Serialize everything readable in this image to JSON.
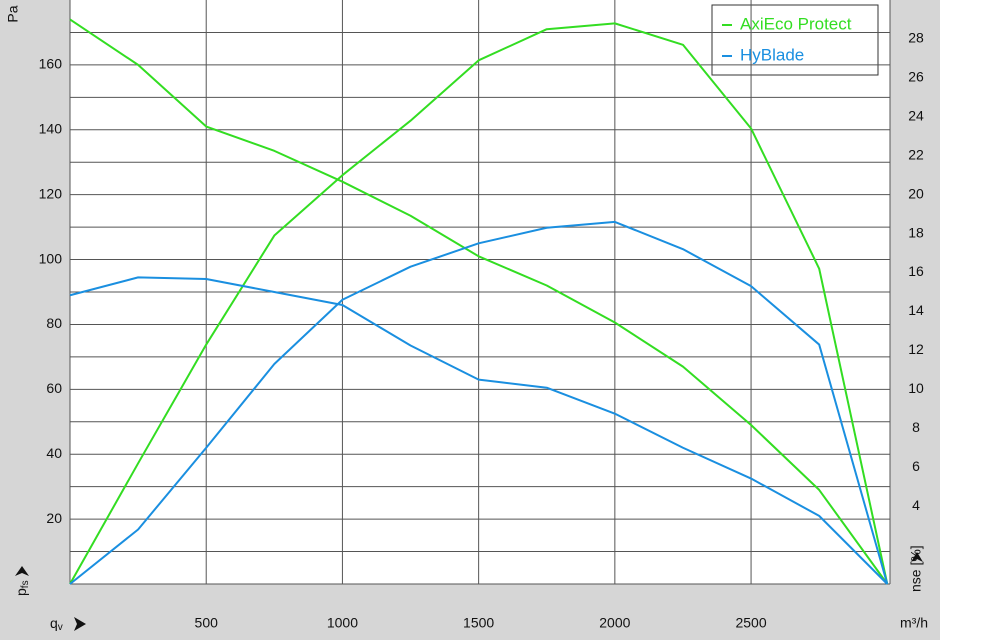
{
  "chart_data": {
    "type": "line",
    "x_label_symbol": "q",
    "x_label_subscript": "v",
    "x_unit": "m³/h",
    "y_label_symbol": "p",
    "y_label_subscript": "fs",
    "y_unit": "Pa",
    "y2_label": "nse [%]",
    "x": [
      0,
      250,
      500,
      750,
      1000,
      1250,
      1500,
      1750,
      2000,
      2250,
      2500,
      2750,
      3000
    ],
    "xlim": [
      0,
      3010
    ],
    "xticks": [
      500,
      1000,
      1500,
      2000,
      2500
    ],
    "ylim": [
      0,
      180
    ],
    "yticks": [
      20,
      40,
      60,
      80,
      100,
      120,
      140,
      160
    ],
    "y_grid": [
      10,
      20,
      30,
      40,
      50,
      60,
      70,
      80,
      90,
      100,
      110,
      120,
      130,
      140,
      150,
      160,
      170
    ],
    "y2lim": [
      0,
      30
    ],
    "y2ticks": [
      4,
      6,
      8,
      10,
      12,
      14,
      16,
      18,
      20,
      22,
      24,
      26,
      28
    ],
    "legend": "upper right",
    "series": [
      {
        "name": "AxiEco Protect",
        "color": "#33dd22",
        "values": [
          174,
          160,
          141,
          133.5,
          124,
          113.5,
          101,
          92,
          80.6,
          67,
          49,
          29,
          0
        ],
        "y2_values": [
          0,
          6.2,
          12.3,
          17.9,
          21.0,
          23.8,
          26.9,
          28.5,
          28.8,
          27.7,
          23.4,
          16.2,
          0
        ]
      },
      {
        "name": "HyBlade",
        "color": "#1a8fe0",
        "values": [
          89,
          94.5,
          94,
          90,
          86,
          73.5,
          63,
          60.5,
          52.5,
          42,
          32.5,
          21,
          0
        ],
        "y2_values": [
          0,
          2.8,
          7.0,
          11.3,
          14.6,
          16.3,
          17.5,
          18.3,
          18.6,
          17.2,
          15.3,
          12.3,
          0
        ]
      }
    ]
  }
}
